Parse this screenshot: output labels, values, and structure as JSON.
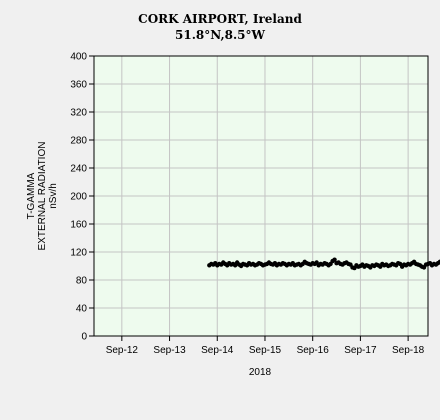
{
  "chart_data": {
    "type": "scatter",
    "title": "CORK AIRPORT, Ireland",
    "subtitle": "51.8°N,8.5°W",
    "ylabel_lines": [
      "T-GAMMA",
      "EXTERNAL RADIATION",
      "nSv/h"
    ],
    "xlabel": "2018",
    "ylim": [
      0,
      400
    ],
    "yticks": [
      0,
      40,
      80,
      120,
      160,
      200,
      240,
      280,
      320,
      360,
      400
    ],
    "xlim": [
      "2018-09-11T10:00",
      "2018-09-18T10:00"
    ],
    "xticks": [
      {
        "date": "2018-09-12",
        "label": "Sep-12"
      },
      {
        "date": "2018-09-13",
        "label": "Sep-13"
      },
      {
        "date": "2018-09-14",
        "label": "Sep-14"
      },
      {
        "date": "2018-09-15",
        "label": "Sep-15"
      },
      {
        "date": "2018-09-16",
        "label": "Sep-16"
      },
      {
        "date": "2018-09-17",
        "label": "Sep-17"
      },
      {
        "date": "2018-09-18",
        "label": "Sep-18"
      }
    ],
    "grid": true,
    "colors": {
      "plot_bg": "#eefbee",
      "grid": "#c4c4c4",
      "point": "#000000",
      "page_bg": "#f0f0f0"
    },
    "series": [
      {
        "x_start": "2018-09-13T20:00",
        "x_step_hours": 1,
        "values": [
          101,
          103,
          102,
          104,
          101,
          103,
          102,
          105,
          103,
          101,
          104,
          102,
          103,
          101,
          105,
          102,
          100,
          103,
          102,
          101,
          104,
          102,
          103,
          101,
          102,
          104,
          103,
          101,
          102,
          103,
          105,
          103,
          102,
          104,
          101,
          103,
          102,
          104,
          103,
          101,
          103,
          102,
          104,
          101,
          102,
          103,
          101,
          103,
          106,
          104,
          103,
          102,
          104,
          103,
          105,
          101,
          103,
          102,
          104,
          103,
          101,
          103,
          107,
          109,
          104,
          105,
          103,
          102,
          104,
          105,
          103,
          102,
          98,
          97,
          101,
          99,
          100,
          102,
          99,
          101,
          100,
          98,
          101,
          100,
          102,
          101,
          99,
          103,
          101,
          102,
          100,
          101,
          103,
          102,
          101,
          104,
          103,
          99,
          102,
          101,
          103,
          102,
          104,
          106,
          103,
          102,
          101,
          99,
          98,
          102,
          103,
          104,
          101,
          103,
          102,
          104,
          106,
          108,
          110,
          113,
          111,
          108,
          105,
          102,
          101,
          103,
          100,
          101,
          102,
          101,
          104,
          102,
          105,
          107
        ]
      }
    ]
  }
}
